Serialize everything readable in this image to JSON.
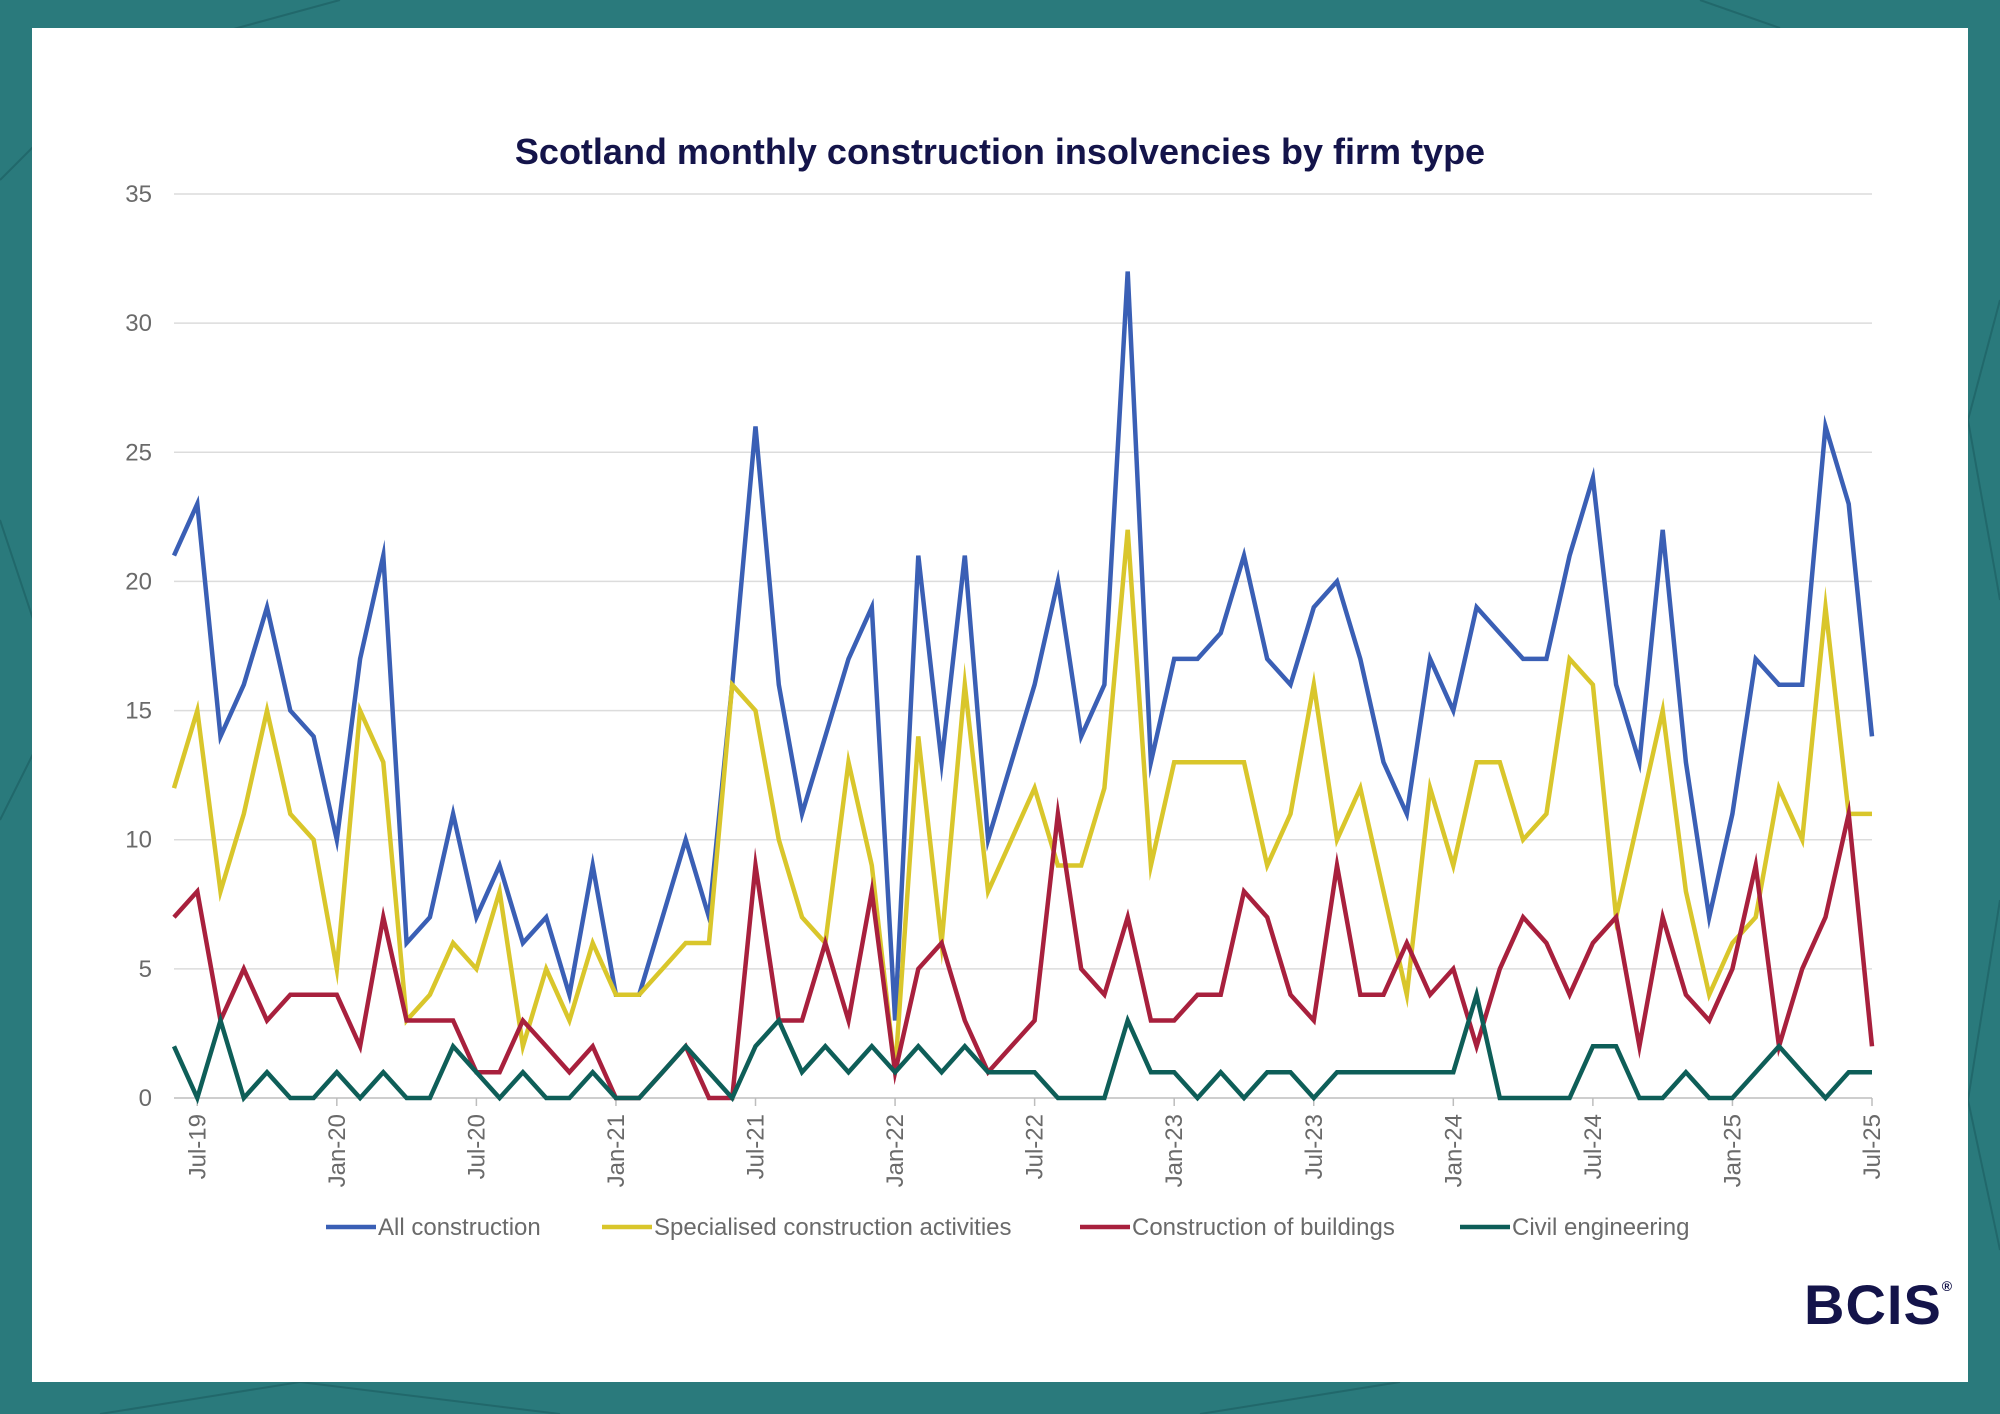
{
  "brand": {
    "logo_text": "BCIS",
    "registered_mark": "®",
    "background_color": "#2a7a7c"
  },
  "chart_data": {
    "type": "line",
    "title": "Scotland monthly construction insolvencies by firm type",
    "xlabel": "",
    "ylabel": "",
    "ylim": [
      0,
      35
    ],
    "yticks": [
      0,
      5,
      10,
      15,
      20,
      25,
      30,
      35
    ],
    "grid": true,
    "legend_position": "bottom",
    "x_start": "Jun-19",
    "x_tick_labels": [
      "Jul-19",
      "Jan-20",
      "Jul-20",
      "Jan-21",
      "Jul-21",
      "Jan-22",
      "Jul-22",
      "Jan-23",
      "Jul-23",
      "Jan-24",
      "Jul-24",
      "Jan-25",
      "Jul-25"
    ],
    "series": [
      {
        "name": "All construction",
        "color": "#3a5fb5",
        "values": [
          21,
          23,
          14,
          16,
          19,
          15,
          14,
          10,
          17,
          21,
          6,
          7,
          11,
          7,
          9,
          6,
          7,
          4,
          9,
          4,
          4,
          7,
          10,
          7,
          16,
          26,
          16,
          11,
          14,
          17,
          19,
          3,
          21,
          13,
          21,
          10,
          13,
          16,
          20,
          14,
          16,
          32,
          13,
          17,
          17,
          18,
          21,
          17,
          16,
          19,
          20,
          17,
          13,
          11,
          17,
          15,
          19,
          18,
          17,
          17,
          21,
          24,
          16,
          13,
          22,
          13,
          7,
          11,
          17,
          16,
          16,
          26,
          23,
          14
        ]
      },
      {
        "name": "Specialised construction activities",
        "color": "#d9c62b",
        "values": [
          12,
          15,
          8,
          11,
          15,
          11,
          10,
          5,
          15,
          13,
          3,
          4,
          6,
          5,
          8,
          2,
          5,
          3,
          6,
          4,
          4,
          5,
          6,
          6,
          16,
          15,
          10,
          7,
          6,
          13,
          9,
          1,
          14,
          6,
          16,
          8,
          10,
          12,
          9,
          9,
          12,
          22,
          9,
          13,
          13,
          13,
          13,
          9,
          11,
          16,
          10,
          12,
          8,
          4,
          12,
          9,
          13,
          13,
          10,
          11,
          17,
          16,
          7,
          11,
          15,
          8,
          4,
          6,
          7,
          12,
          10,
          19,
          11,
          11
        ]
      },
      {
        "name": "Construction of buildings",
        "color": "#a8203d",
        "values": [
          7,
          8,
          3,
          5,
          3,
          4,
          4,
          4,
          2,
          7,
          3,
          3,
          3,
          1,
          1,
          3,
          2,
          1,
          2,
          0,
          0,
          1,
          2,
          0,
          0,
          9,
          3,
          3,
          6,
          3,
          8,
          1,
          5,
          6,
          3,
          1,
          2,
          3,
          11,
          5,
          4,
          7,
          3,
          3,
          4,
          4,
          8,
          7,
          4,
          3,
          9,
          4,
          4,
          6,
          4,
          5,
          2,
          5,
          7,
          6,
          4,
          6,
          7,
          2,
          7,
          4,
          3,
          5,
          9,
          2,
          5,
          7,
          11,
          2
        ]
      },
      {
        "name": "Civil engineering",
        "color": "#0e5e58",
        "values": [
          2,
          0,
          3,
          0,
          1,
          0,
          0,
          1,
          0,
          1,
          0,
          0,
          2,
          1,
          0,
          1,
          0,
          0,
          1,
          0,
          0,
          1,
          2,
          1,
          0,
          2,
          3,
          1,
          2,
          1,
          2,
          1,
          2,
          1,
          2,
          1,
          1,
          1,
          0,
          0,
          0,
          3,
          1,
          1,
          0,
          1,
          0,
          1,
          1,
          0,
          1,
          1,
          1,
          1,
          1,
          1,
          4,
          0,
          0,
          0,
          0,
          2,
          2,
          0,
          0,
          1,
          0,
          0,
          1,
          2,
          1,
          0,
          1,
          1
        ]
      }
    ]
  }
}
